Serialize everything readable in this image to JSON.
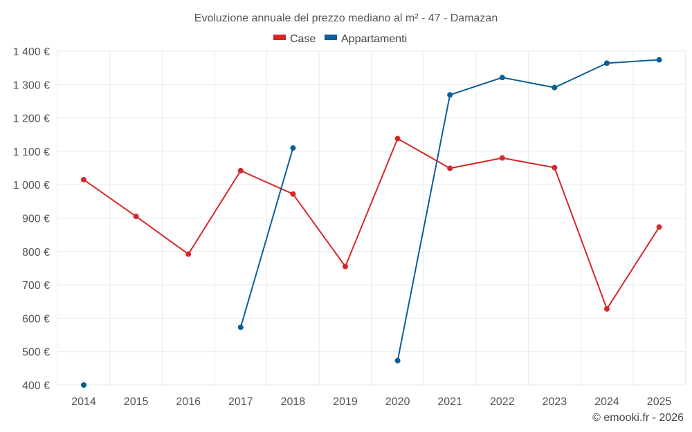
{
  "chart_data": {
    "type": "line",
    "title": "Evoluzione annuale del prezzo mediano al m² - 47 - Damazan",
    "x": [
      2014,
      2015,
      2016,
      2017,
      2018,
      2019,
      2020,
      2021,
      2022,
      2023,
      2024,
      2025
    ],
    "x_tick_labels": [
      "2014",
      "2015",
      "2016",
      "2017",
      "2018",
      "2019",
      "2020",
      "2021",
      "2022",
      "2023",
      "2024",
      "2025"
    ],
    "y_ticks": [
      400,
      500,
      600,
      700,
      800,
      900,
      1000,
      1100,
      1200,
      1300,
      1400
    ],
    "y_tick_labels": [
      "400 €",
      "500 €",
      "600 €",
      "700 €",
      "800 €",
      "900 €",
      "1 000 €",
      "1 100 €",
      "1 200 €",
      "1 300 €",
      "1 400 €"
    ],
    "ylim": [
      400,
      1400
    ],
    "grid": true,
    "legend_position": "top-center",
    "series": [
      {
        "name": "Case",
        "color": "#d62728",
        "values": [
          1015,
          905,
          792,
          1042,
          972,
          755,
          1138,
          1049,
          1080,
          1051,
          628,
          873
        ]
      },
      {
        "name": "Appartamenti",
        "color": "#0b5e96",
        "values": [
          400,
          null,
          null,
          573,
          1110,
          null,
          473,
          1269,
          1321,
          1291,
          1364,
          1374
        ]
      }
    ],
    "credit": "© emooki.fr - 2026"
  }
}
